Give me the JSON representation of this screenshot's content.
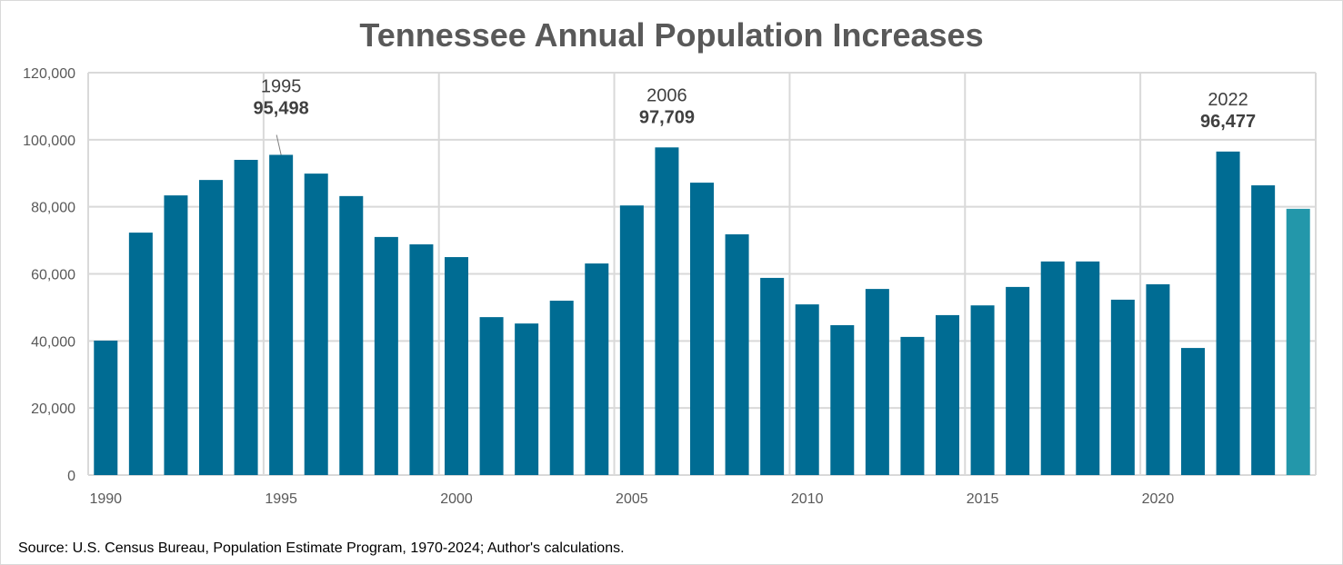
{
  "chart_data": {
    "type": "bar",
    "title": "Tennessee Annual Population Increases",
    "xlabel": "",
    "ylabel": "",
    "categories": [
      1990,
      1991,
      1992,
      1993,
      1994,
      1995,
      1996,
      1997,
      1998,
      1999,
      2000,
      2001,
      2002,
      2003,
      2004,
      2005,
      2006,
      2007,
      2008,
      2009,
      2010,
      2011,
      2012,
      2013,
      2014,
      2015,
      2016,
      2017,
      2018,
      2019,
      2020,
      2021,
      2022,
      2023,
      2024
    ],
    "values": [
      40100,
      72300,
      83400,
      88000,
      94000,
      95498,
      89900,
      83200,
      71000,
      68800,
      65000,
      47100,
      45200,
      52000,
      63100,
      80400,
      97709,
      87200,
      71800,
      58800,
      50900,
      44700,
      55500,
      41200,
      47700,
      50600,
      56100,
      63700,
      63700,
      52300,
      56900,
      37900,
      96477,
      86400,
      79400
    ],
    "ylim": [
      0,
      120000
    ],
    "yticks": [
      "0",
      "20,000",
      "40,000",
      "60,000",
      "80,000",
      "100,000",
      "120,000"
    ],
    "xticks": [
      "1990",
      "1995",
      "2000",
      "2005",
      "2010",
      "2015",
      "2020"
    ],
    "grid": true,
    "colors": {
      "bar": "#006C93",
      "highlight_last": "#2397AA",
      "grid": "#d9d9d9"
    },
    "annotations": [
      {
        "year": "1995",
        "value": "95,498",
        "index": 5
      },
      {
        "year": "2006",
        "value": "97,709",
        "index": 16
      },
      {
        "year": "2022",
        "value": "96,477",
        "index": 32
      }
    ]
  },
  "source": "Source: U.S. Census Bureau, Population Estimate Program, 1970-2024; Author's calculations."
}
